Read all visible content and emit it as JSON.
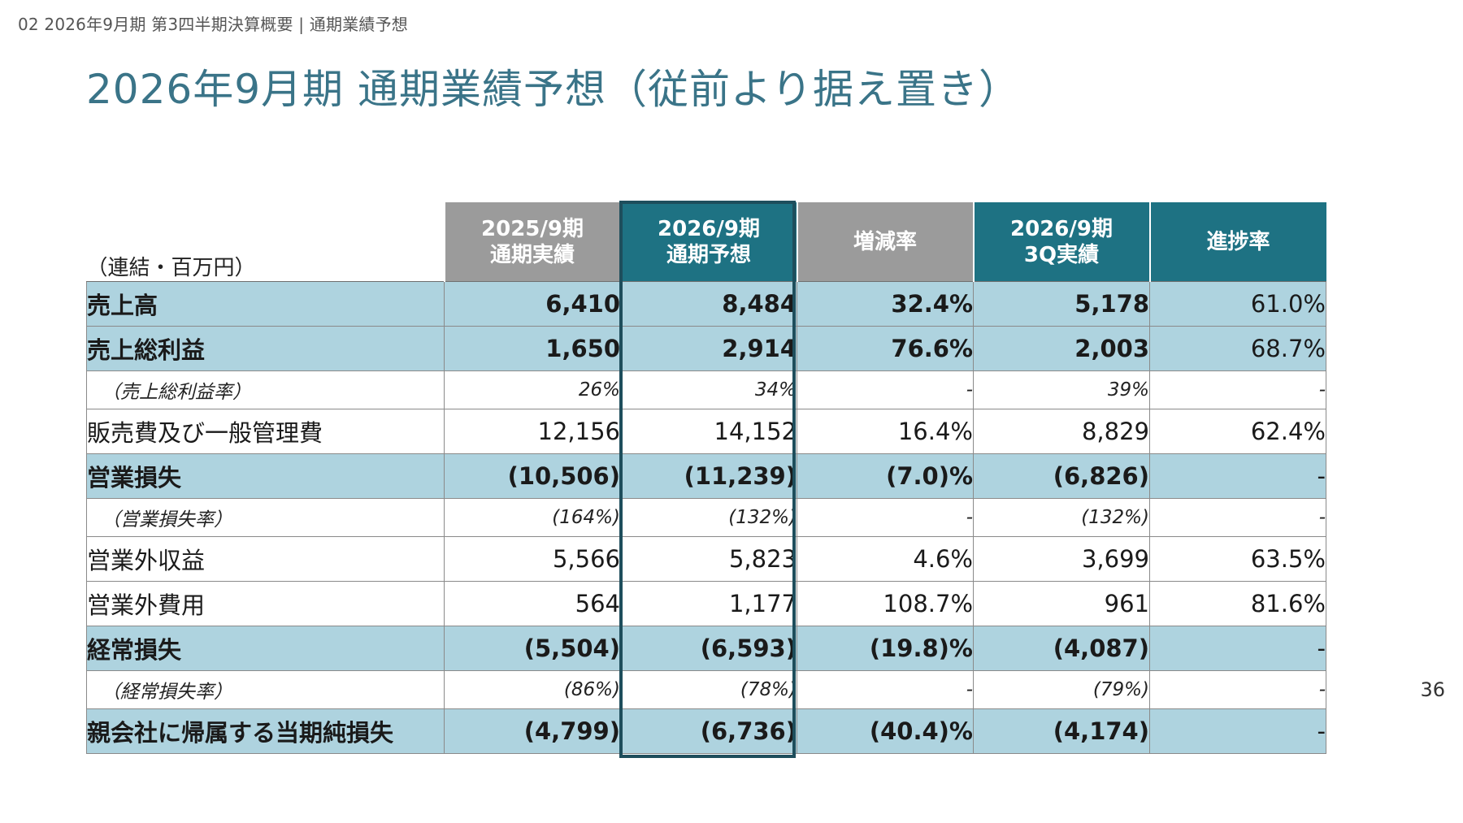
{
  "header": {
    "breadcrumb": "02 2026年9月期 第3四半期決算概要 | 通期業績予想",
    "title": "2026年9月期 通期業績予想（従前より据え置き）",
    "page_number": "36"
  },
  "table": {
    "unit_label": "（連結・百万円）",
    "columns": [
      {
        "line1": "2025/9期",
        "line2": "通期実績",
        "color": "#9b9b9b"
      },
      {
        "line1": "2026/9期",
        "line2": "通期予想",
        "color": "#1e7283"
      },
      {
        "line1": "増減率",
        "line2": "",
        "color": "#9b9b9b"
      },
      {
        "line1": "2026/9期",
        "line2": "3Q実績",
        "color": "#1e7283"
      },
      {
        "line1": "進捗率",
        "line2": "",
        "color": "#1e7283"
      }
    ],
    "rows": [
      {
        "type": "main",
        "label": "売上高",
        "values": [
          "6,410",
          "8,484",
          "32.4%",
          "5,178",
          "61.0%"
        ]
      },
      {
        "type": "main",
        "label": "売上総利益",
        "values": [
          "1,650",
          "2,914",
          "76.6%",
          "2,003",
          "68.7%"
        ]
      },
      {
        "type": "ratio",
        "label": "（売上総利益率）",
        "values": [
          "26%",
          "34%",
          "-",
          "39%",
          "-"
        ]
      },
      {
        "type": "sub",
        "label": "販売費及び一般管理費",
        "values": [
          "12,156",
          "14,152",
          "16.4%",
          "8,829",
          "62.4%"
        ]
      },
      {
        "type": "main",
        "label": "営業損失",
        "values": [
          "(10,506)",
          "(11,239)",
          "(7.0)%",
          "(6,826)",
          "-"
        ]
      },
      {
        "type": "ratio",
        "label": "（営業損失率）",
        "values": [
          "(164%)",
          "(132%)",
          "-",
          "(132%)",
          "-"
        ]
      },
      {
        "type": "sub",
        "label": "営業外収益",
        "values": [
          "5,566",
          "5,823",
          "4.6%",
          "3,699",
          "63.5%"
        ]
      },
      {
        "type": "sub",
        "label": "営業外費用",
        "values": [
          "564",
          "1,177",
          "108.7%",
          "961",
          "81.6%"
        ]
      },
      {
        "type": "main",
        "label": "経常損失",
        "values": [
          "(5,504)",
          "(6,593)",
          "(19.8)%",
          "(4,087)",
          "-"
        ]
      },
      {
        "type": "ratio",
        "label": "（経常損失率）",
        "values": [
          "(86%)",
          "(78%)",
          "-",
          "(79%)",
          "-"
        ]
      },
      {
        "type": "main",
        "label": "親会社に帰属する当期純損失",
        "values": [
          "(4,799)",
          "(6,736)",
          "(40.4)%",
          "(4,174)",
          "-"
        ]
      }
    ],
    "highlight_color": "#1e4e5c",
    "main_row_color": "#aed3df"
  }
}
